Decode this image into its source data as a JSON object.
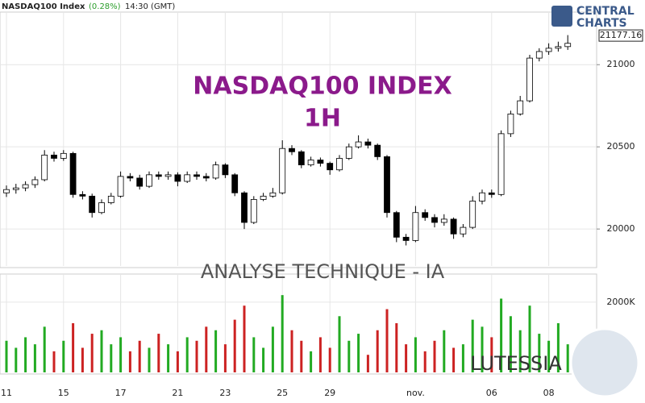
{
  "header": {
    "symbol": "NASDAQ100 Index",
    "change": "(0.28%)",
    "time": "14:30 (GMT)"
  },
  "logo": {
    "line1": "CENTRAL",
    "line2": "CHARTS"
  },
  "chart_data": [
    {
      "type": "candlestick",
      "title": "NASDAQ100 INDEX",
      "subtitle": "1H",
      "annotation": "ANALYSE TECHNIQUE - IA",
      "categories": [
        "11",
        null,
        null,
        null,
        null,
        null,
        "15",
        null,
        null,
        null,
        null,
        null,
        "17",
        null,
        null,
        null,
        null,
        null,
        "21",
        null,
        null,
        null,
        null,
        "23",
        null,
        null,
        null,
        null,
        null,
        "25",
        null,
        null,
        null,
        null,
        "29",
        null,
        null,
        null,
        null,
        null,
        null,
        null,
        null,
        "nov.",
        null,
        null,
        null,
        null,
        null,
        null,
        null,
        "06",
        null,
        null,
        null,
        null,
        null,
        "08",
        null,
        null
      ],
      "open": [
        20220,
        20240,
        20250,
        20270,
        20300,
        20450,
        20430,
        20460,
        20210,
        20200,
        20100,
        20160,
        20200,
        20320,
        20310,
        20260,
        20330,
        20320,
        20330,
        20290,
        20330,
        20320,
        20310,
        20390,
        20330,
        20220,
        20040,
        20180,
        20200,
        20220,
        20490,
        20470,
        20390,
        20420,
        20400,
        20360,
        20430,
        20500,
        20530,
        20510,
        20440,
        20100,
        19950,
        19930,
        20100,
        20070,
        20040,
        20060,
        19970,
        20010,
        20170,
        20220,
        20210,
        20580,
        20700,
        20780,
        21040,
        21080,
        21100,
        21110
      ],
      "high": [
        20265,
        20275,
        20290,
        20320,
        20480,
        20470,
        20480,
        20470,
        20230,
        20215,
        20180,
        20220,
        20350,
        20340,
        20330,
        20350,
        20350,
        20350,
        20345,
        20350,
        20350,
        20340,
        20410,
        20400,
        20340,
        20230,
        20200,
        20220,
        20250,
        20540,
        20510,
        20480,
        20440,
        20435,
        20410,
        20450,
        20520,
        20570,
        20550,
        20520,
        20450,
        20110,
        19970,
        20140,
        20120,
        20090,
        20090,
        20070,
        20030,
        20200,
        20240,
        20240,
        20600,
        20720,
        20810,
        21060,
        21100,
        21130,
        21140,
        21180
      ],
      "low": [
        20195,
        20215,
        20230,
        20250,
        20290,
        20410,
        20415,
        20190,
        20180,
        20070,
        20090,
        20150,
        20190,
        20290,
        20240,
        20250,
        20300,
        20300,
        20260,
        20280,
        20300,
        20290,
        20300,
        20310,
        20200,
        20000,
        20030,
        20170,
        20190,
        20210,
        20450,
        20370,
        20380,
        20380,
        20330,
        20350,
        20420,
        20490,
        20490,
        20420,
        20070,
        19920,
        19900,
        19920,
        20050,
        20010,
        20020,
        19940,
        19950,
        20000,
        20150,
        20190,
        20200,
        20560,
        20690,
        20770,
        21020,
        21060,
        21080,
        21090
      ],
      "close": [
        20240,
        20250,
        20270,
        20300,
        20450,
        20430,
        20460,
        20210,
        20200,
        20100,
        20160,
        20200,
        20320,
        20310,
        20260,
        20330,
        20320,
        20330,
        20290,
        20330,
        20320,
        20310,
        20390,
        20330,
        20220,
        20040,
        20180,
        20200,
        20220,
        20490,
        20470,
        20390,
        20420,
        20400,
        20360,
        20430,
        20500,
        20530,
        20510,
        20440,
        20100,
        19950,
        19930,
        20100,
        20070,
        20040,
        20060,
        19970,
        20010,
        20170,
        20220,
        20210,
        20580,
        20700,
        20780,
        21040,
        21080,
        21100,
        21110,
        21130
      ],
      "up_color": "#ffffff",
      "down_color": "#000000",
      "last_price": 21177.16,
      "ylim": [
        19775,
        21320
      ],
      "yticks": [
        20000,
        20500,
        21000
      ],
      "grid": true
    },
    {
      "type": "bar",
      "annotation": "LUTESSIA",
      "values": [
        900,
        700,
        1000,
        800,
        1300,
        600,
        900,
        1400,
        700,
        1100,
        1200,
        800,
        1000,
        600,
        900,
        700,
        1100,
        800,
        600,
        1000,
        900,
        1300,
        1200,
        800,
        1500,
        1900,
        1000,
        700,
        1300,
        2200,
        1200,
        900,
        600,
        1000,
        700,
        1600,
        900,
        1100,
        500,
        1200,
        1800,
        1400,
        800,
        1000,
        600,
        900,
        1200,
        700,
        800,
        1500,
        1300,
        1000,
        2100,
        1600,
        1200,
        1900,
        1100,
        900,
        1400,
        800
      ],
      "up_color": "#22aa22",
      "down_color": "#cc2222",
      "ylim": [
        0,
        2800
      ],
      "yticks": [
        {
          "value": 2000,
          "label": "2000K"
        }
      ]
    }
  ]
}
